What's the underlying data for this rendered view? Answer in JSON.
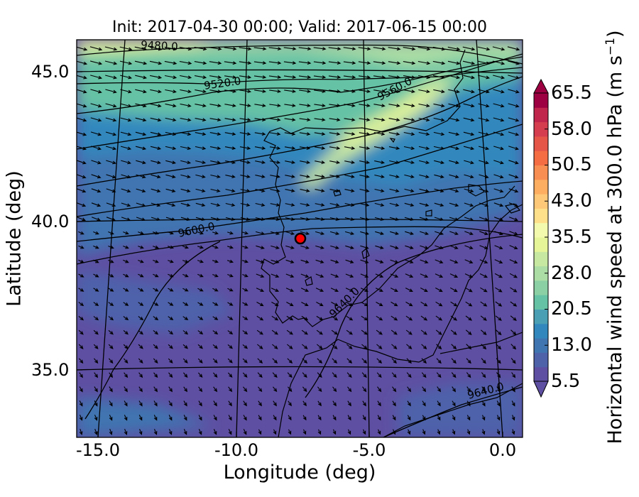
{
  "title": "Init: 2017-04-30 00:00; Valid: 2017-06-15 00:00",
  "xlabel": "Longitude (deg)",
  "ylabel": "Latitude (deg)",
  "x_ticks": [
    "-15.0",
    "-10.0",
    "-5.0",
    "0.0"
  ],
  "y_ticks": [
    "45.0",
    "40.0",
    "35.0"
  ],
  "colorbar": {
    "label": "Horizontal wind speed at 300.0 hPa (m s",
    "label_sup": "−1",
    "label_end": ")",
    "ticks": [
      "65.5",
      "58.0",
      "50.5",
      "43.0",
      "35.5",
      "28.0",
      "20.5",
      "13.0",
      "5.5"
    ],
    "colors": [
      "#5e4fa2",
      "#4e62aa",
      "#3f75b1",
      "#3288bd",
      "#4b9fb5",
      "#66c2a5",
      "#8ad0a4",
      "#abdda4",
      "#c7e8a0",
      "#e6f598",
      "#f3faad",
      "#fee08b",
      "#fdc877",
      "#fdae61",
      "#f98e52",
      "#f46d43",
      "#e55649",
      "#d53e4f",
      "#c0264c",
      "#9e0142"
    ]
  },
  "contour_labels": [
    "9480.0",
    "9520.0",
    "9560.0",
    "9600.0",
    "9640.0",
    "9640.0"
  ],
  "marker_color": "#ff0000",
  "chart_data": {
    "type": "map",
    "xlim": [
      -15.8,
      0.3
    ],
    "ylim": [
      32.8,
      46.1
    ],
    "field": "Horizontal wind speed at 300.0 hPa",
    "units": "m s-1",
    "contour_levels": [
      9480.0,
      9520.0,
      9560.0,
      9600.0,
      9640.0
    ],
    "marker": {
      "lon": -7.7,
      "lat": 39.4
    }
  }
}
